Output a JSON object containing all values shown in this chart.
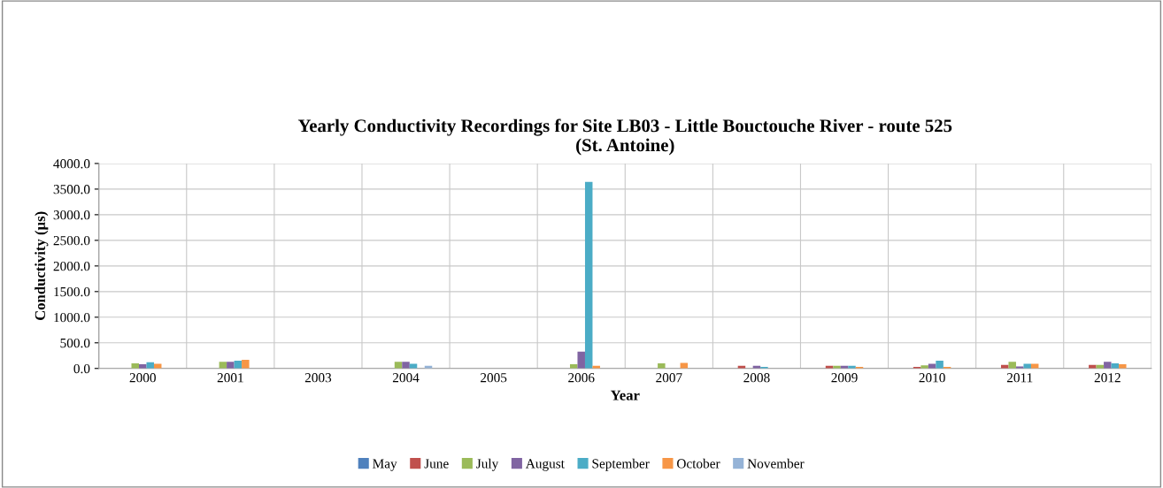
{
  "chart_data": {
    "type": "bar",
    "title": "Yearly Conductivity Recordings for Site LB03 - Little Bouctouche River - route 525\n(St. Antoine)",
    "xlabel": "Year",
    "ylabel": "Conductivity (µs)",
    "categories": [
      "2000",
      "2001",
      "2003",
      "2004",
      "2005",
      "2006",
      "2007",
      "2008",
      "2009",
      "2010",
      "2011",
      "2012"
    ],
    "series": [
      {
        "name": "May",
        "color": "#4f81bd",
        "values": [
          null,
          null,
          null,
          null,
          null,
          null,
          null,
          null,
          null,
          null,
          null,
          null
        ]
      },
      {
        "name": "June",
        "color": "#c0504d",
        "values": [
          null,
          null,
          null,
          null,
          null,
          null,
          null,
          50,
          50,
          30,
          70,
          70
        ]
      },
      {
        "name": "July",
        "color": "#9bbb59",
        "values": [
          100,
          130,
          null,
          130,
          null,
          80,
          100,
          null,
          50,
          60,
          130,
          70
        ]
      },
      {
        "name": "August",
        "color": "#8064a2",
        "values": [
          80,
          130,
          null,
          130,
          null,
          330,
          null,
          50,
          50,
          90,
          40,
          130
        ]
      },
      {
        "name": "September",
        "color": "#4bacc6",
        "values": [
          120,
          150,
          null,
          90,
          null,
          3640,
          null,
          30,
          50,
          150,
          90,
          100
        ]
      },
      {
        "name": "October",
        "color": "#f79646",
        "values": [
          90,
          170,
          null,
          null,
          null,
          50,
          110,
          null,
          30,
          30,
          90,
          80
        ]
      },
      {
        "name": "November",
        "color": "#95b3d7",
        "values": [
          null,
          null,
          null,
          50,
          null,
          null,
          null,
          null,
          null,
          null,
          null,
          null
        ]
      }
    ],
    "ylim": [
      0,
      4000
    ],
    "yticks": [
      {
        "value": 0,
        "label": "0.0"
      },
      {
        "value": 500,
        "label": "500.0"
      },
      {
        "value": 1000,
        "label": "1000.0"
      },
      {
        "value": 1500,
        "label": "1500.0"
      },
      {
        "value": 2000,
        "label": "2000.0"
      },
      {
        "value": 2500,
        "label": "2500.0"
      },
      {
        "value": 3000,
        "label": "3000.0"
      },
      {
        "value": 3500,
        "label": "3500.0"
      },
      {
        "value": 4000,
        "label": "4000.0"
      }
    ],
    "grid": true,
    "legend": "bottom"
  }
}
